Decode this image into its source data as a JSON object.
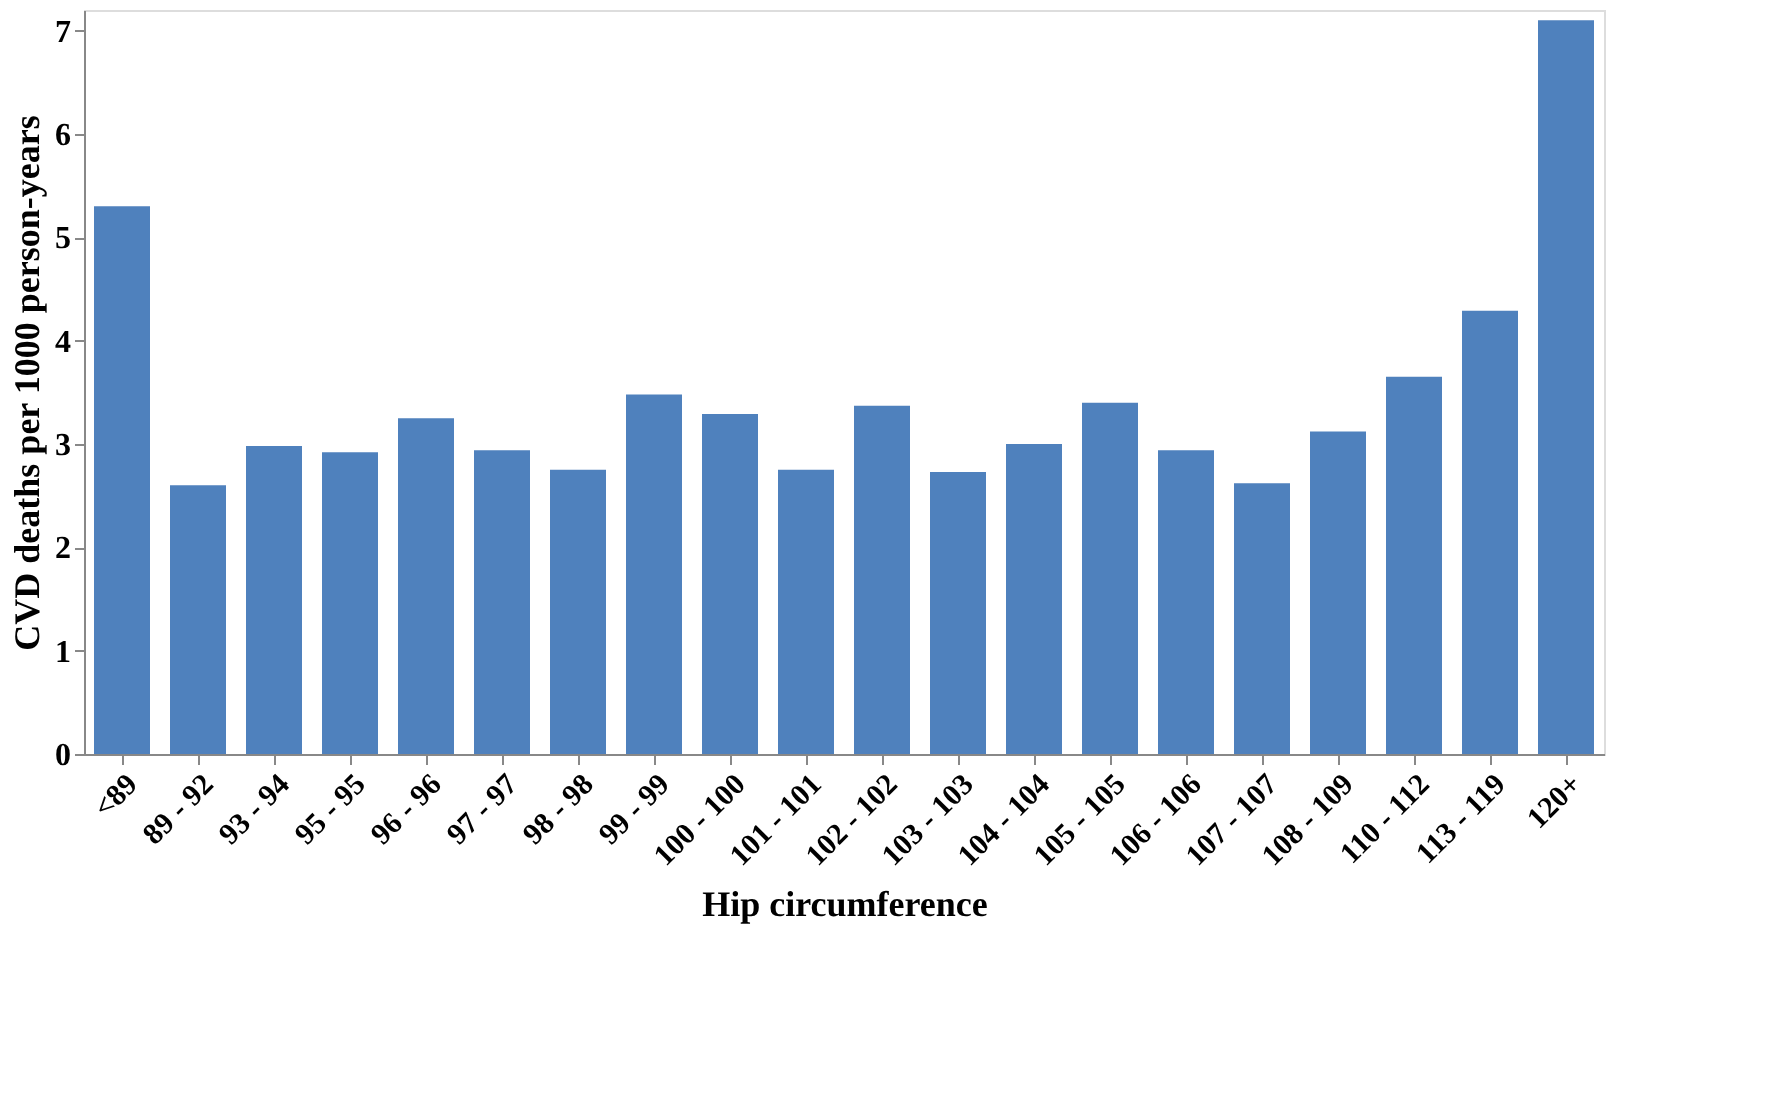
{
  "chart_data": {
    "type": "bar",
    "xlabel": "Hip circumference",
    "ylabel": "CVD deaths per 1000 person-years",
    "categories": [
      "<89",
      "89 - 92",
      "93 - 94",
      "95 - 95",
      "96 - 96",
      "97 - 97",
      "98 - 98",
      "99 - 99",
      "100 - 100",
      "101 - 101",
      "102 - 102",
      "103 - 103",
      "104 - 104",
      "105 - 105",
      "106 - 106",
      "107 - 107",
      "108 - 109",
      "110 - 112",
      "113 - 119",
      "120+"
    ],
    "series": [
      {
        "color": "#4f81bd",
        "values": [
          5.3,
          2.6,
          2.98,
          2.92,
          3.25,
          2.94,
          2.75,
          3.48,
          3.29,
          2.75,
          3.37,
          2.73,
          3.0,
          3.4,
          2.94,
          2.62,
          3.12,
          3.65,
          4.29,
          7.1
        ]
      }
    ],
    "ylim": [
      0,
      7.2
    ],
    "yticks": [
      0,
      1,
      2,
      3,
      4,
      5,
      6,
      7
    ],
    "grid": false
  }
}
